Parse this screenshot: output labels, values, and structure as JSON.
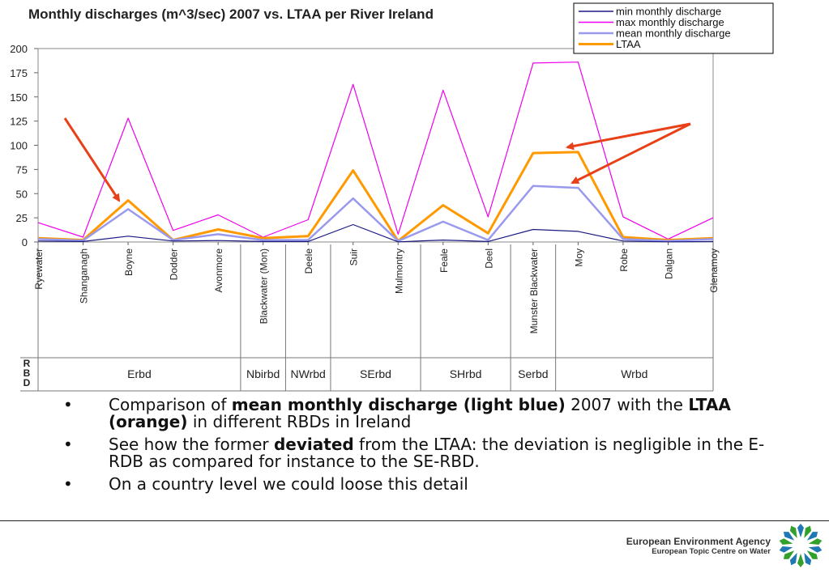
{
  "chart_data": {
    "type": "line",
    "title": "Monthly discharges (m^3/sec) 2007 vs. LTAA per River Ireland",
    "categories": [
      "Ryewater",
      "Shanganagh",
      "Boyne",
      "Dodder",
      "Avonmore",
      "Blackwater (Mon)",
      "Deele",
      "Suir",
      "Mulmontry",
      "Feale",
      "Deel",
      "Munster Blackwater",
      "Moy",
      "Robe",
      "Dalgan",
      "Glenamoy"
    ],
    "ylim": [
      0,
      200
    ],
    "yticks": [
      "0",
      "25",
      "50",
      "75",
      "100",
      "125",
      "150",
      "175",
      "200"
    ],
    "series": [
      {
        "name": "min monthly discharge",
        "color": "#1a1a80",
        "values": [
          1,
          0.5,
          6,
          1,
          1.5,
          0.5,
          0.5,
          18,
          0.2,
          2,
          0.5,
          13,
          11,
          1,
          0.2,
          0.5
        ]
      },
      {
        "name": "max monthly discharge",
        "color": "#ee00ee",
        "values": [
          20,
          5,
          128,
          12,
          28,
          5,
          23,
          163,
          8,
          157,
          26,
          185,
          186,
          26,
          3,
          25
        ]
      },
      {
        "name": "mean monthly discharge",
        "color": "#9999ee",
        "values": [
          3,
          1.5,
          34,
          2,
          8,
          2,
          2,
          45,
          1,
          21,
          2,
          58,
          56,
          3,
          1,
          3
        ]
      },
      {
        "name": "LTAA",
        "color": "#ff9900",
        "values": [
          4,
          2,
          43,
          2,
          13,
          4,
          6,
          74,
          1,
          38,
          9,
          92,
          93,
          5,
          2,
          4
        ]
      }
    ],
    "rbd_header": "RBD",
    "rbd_groups": [
      {
        "label": "Erbd",
        "span": 5
      },
      {
        "label": "Nbirbd",
        "span": 1
      },
      {
        "label": "NWrbd",
        "span": 1
      },
      {
        "label": "SErbd",
        "span": 2
      },
      {
        "label": "SHrbd",
        "span": 2
      },
      {
        "label": "Serbd",
        "span": 1
      },
      {
        "label": "Wrbd",
        "span": 4
      }
    ],
    "arrow_color": "#e84018",
    "grid": false,
    "legend_position": "top-right"
  },
  "bullets": [
    {
      "parts": [
        {
          "text": "Comparison of ",
          "bold": false
        },
        {
          "text": "mean monthly discharge (light blue)",
          "bold": true
        },
        {
          "text": " 2007 with the ",
          "bold": false
        },
        {
          "text": "LTAA (orange)",
          "bold": true
        },
        {
          "text": " in different RBDs in Ireland",
          "bold": false
        }
      ]
    },
    {
      "parts": [
        {
          "text": "See how the former ",
          "bold": false
        },
        {
          "text": "deviated",
          "bold": true
        },
        {
          "text": " from the LTAA: the deviation is negligible in the E-RDB as compared for instance to the SE-RBD.",
          "bold": false
        }
      ]
    },
    {
      "parts": [
        {
          "text": "On a country level we could loose this detail",
          "bold": false
        }
      ]
    }
  ],
  "bullet_symbol": "•",
  "footer": {
    "line1": "European Environment Agency",
    "line2": "European Topic Centre on Water"
  },
  "logo_icon": "eea-logo-icon"
}
